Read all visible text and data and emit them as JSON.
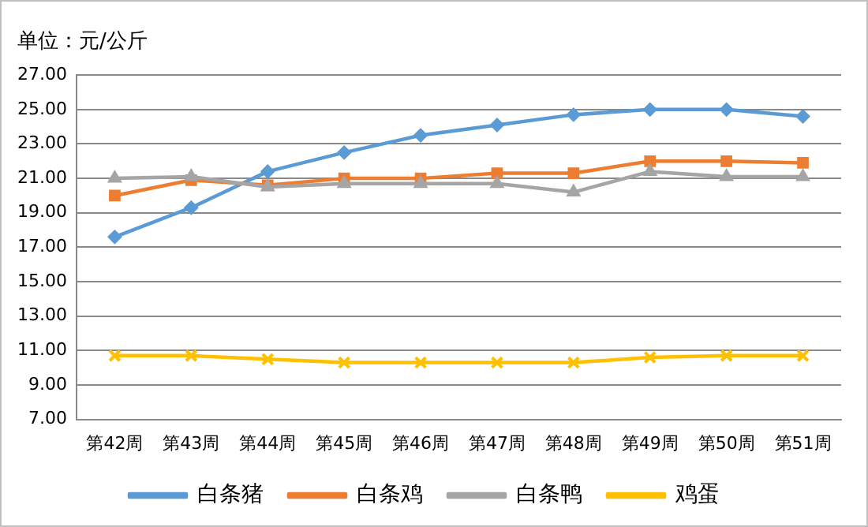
{
  "chart_data": {
    "type": "line",
    "ylabel": "单位：元/公斤",
    "categories": [
      "第42周",
      "第43周",
      "第44周",
      "第45周",
      "第46周",
      "第47周",
      "第48周",
      "第49周",
      "第50周",
      "第51周"
    ],
    "series": [
      {
        "name": "白条猪",
        "color": "#5b9bd5",
        "marker": "diamond",
        "values": [
          17.6,
          19.3,
          21.4,
          22.5,
          23.5,
          24.1,
          24.7,
          25.0,
          25.0,
          24.6
        ]
      },
      {
        "name": "白条鸡",
        "color": "#ed7d31",
        "marker": "square",
        "values": [
          20.0,
          20.9,
          20.6,
          21.0,
          21.0,
          21.3,
          21.3,
          22.0,
          22.0,
          21.9
        ]
      },
      {
        "name": "白条鸭",
        "color": "#a5a5a5",
        "marker": "triangle",
        "values": [
          21.0,
          21.1,
          20.5,
          20.7,
          20.7,
          20.7,
          20.2,
          21.4,
          21.1,
          21.1
        ]
      },
      {
        "name": "鸡蛋",
        "color": "#ffc000",
        "marker": "cross",
        "values": [
          10.7,
          10.7,
          10.5,
          10.3,
          10.3,
          10.3,
          10.3,
          10.6,
          10.7,
          10.7
        ]
      }
    ],
    "ylim": [
      7,
      27
    ],
    "yticks": [
      {
        "value": 7,
        "label": "7.00"
      },
      {
        "value": 9,
        "label": "9.00"
      },
      {
        "value": 11,
        "label": "11.00"
      },
      {
        "value": 13,
        "label": "13.00"
      },
      {
        "value": 15,
        "label": "15.00"
      },
      {
        "value": 17,
        "label": "17.00"
      },
      {
        "value": 19,
        "label": "19.00"
      },
      {
        "value": 21,
        "label": "21.00"
      },
      {
        "value": 23,
        "label": "23.00"
      },
      {
        "value": 25,
        "label": "25.00"
      },
      {
        "value": 27,
        "label": "27.00"
      }
    ],
    "grid": "y",
    "legend": "bottom",
    "line_style": "solid"
  }
}
